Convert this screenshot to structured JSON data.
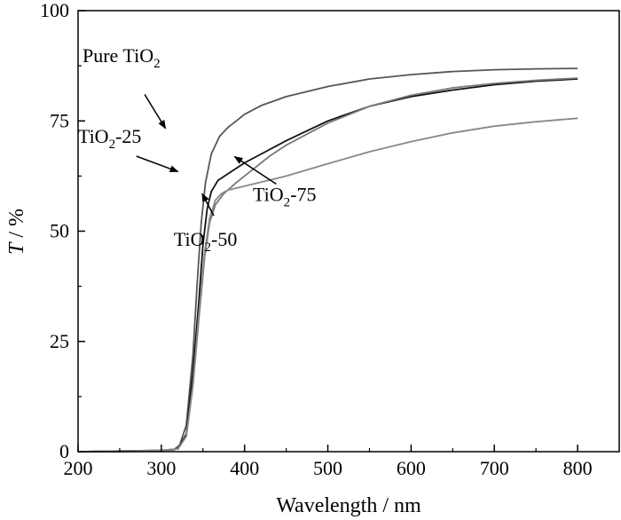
{
  "chart_data": {
    "type": "line",
    "xlabel": "Wavelength / nm",
    "ylabel_italic": "T",
    "ylabel_unit": " / %",
    "xlim": [
      200,
      850
    ],
    "ylim": [
      0,
      100
    ],
    "xticks": [
      200,
      300,
      400,
      500,
      600,
      700,
      800
    ],
    "yticks": [
      0,
      25,
      50,
      75,
      100
    ],
    "grid": false,
    "series": [
      {
        "name": "Pure TiO2",
        "color": "#555555",
        "points": [
          [
            200,
            0
          ],
          [
            250,
            0
          ],
          [
            280,
            0.1
          ],
          [
            300,
            0.3
          ],
          [
            315,
            0.4
          ],
          [
            322,
            1.5
          ],
          [
            330,
            6
          ],
          [
            338,
            22
          ],
          [
            343,
            38
          ],
          [
            348,
            52
          ],
          [
            353,
            61
          ],
          [
            360,
            67.5
          ],
          [
            370,
            71.5
          ],
          [
            380,
            73.5
          ],
          [
            390,
            75
          ],
          [
            400,
            76.5
          ],
          [
            420,
            78.5
          ],
          [
            450,
            80.5
          ],
          [
            500,
            82.8
          ],
          [
            550,
            84.5
          ],
          [
            600,
            85.5
          ],
          [
            650,
            86.2
          ],
          [
            700,
            86.6
          ],
          [
            750,
            86.8
          ],
          [
            800,
            86.9
          ]
        ]
      },
      {
        "name": "TiO2-25",
        "color": "#111111",
        "points": [
          [
            200,
            0
          ],
          [
            300,
            0.3
          ],
          [
            320,
            0.6
          ],
          [
            330,
            4
          ],
          [
            338,
            18
          ],
          [
            345,
            34
          ],
          [
            350,
            47
          ],
          [
            355,
            55
          ],
          [
            360,
            59
          ],
          [
            368,
            61.5
          ],
          [
            380,
            63
          ],
          [
            400,
            65.5
          ],
          [
            420,
            67.5
          ],
          [
            450,
            70.5
          ],
          [
            500,
            75
          ],
          [
            550,
            78.3
          ],
          [
            600,
            80.5
          ],
          [
            650,
            82
          ],
          [
            700,
            83.2
          ],
          [
            750,
            84
          ],
          [
            800,
            84.5
          ]
        ]
      },
      {
        "name": "TiO2-75",
        "color": "#777777",
        "points": [
          [
            200,
            0
          ],
          [
            300,
            0.3
          ],
          [
            320,
            0.6
          ],
          [
            330,
            3.5
          ],
          [
            338,
            15
          ],
          [
            345,
            30
          ],
          [
            352,
            44
          ],
          [
            358,
            52
          ],
          [
            365,
            56
          ],
          [
            375,
            58.5
          ],
          [
            390,
            61
          ],
          [
            410,
            64
          ],
          [
            430,
            67
          ],
          [
            450,
            69.5
          ],
          [
            500,
            74.5
          ],
          [
            550,
            78.3
          ],
          [
            600,
            80.8
          ],
          [
            650,
            82.5
          ],
          [
            700,
            83.5
          ],
          [
            750,
            84.2
          ],
          [
            800,
            84.7
          ]
        ]
      },
      {
        "name": "TiO2-50",
        "color": "#888888",
        "points": [
          [
            200,
            0
          ],
          [
            300,
            0.3
          ],
          [
            320,
            0.6
          ],
          [
            330,
            3.5
          ],
          [
            338,
            15
          ],
          [
            345,
            31
          ],
          [
            352,
            45
          ],
          [
            358,
            53
          ],
          [
            365,
            57
          ],
          [
            372,
            58.5
          ],
          [
            380,
            59.3
          ],
          [
            400,
            60.2
          ],
          [
            450,
            62.5
          ],
          [
            500,
            65.3
          ],
          [
            550,
            68
          ],
          [
            600,
            70.3
          ],
          [
            650,
            72.3
          ],
          [
            700,
            73.8
          ],
          [
            750,
            74.8
          ],
          [
            800,
            75.6
          ]
        ]
      }
    ],
    "annotations": [
      {
        "base": "Pure TiO",
        "sub": "2",
        "suffix": "",
        "text_at": [
          252,
          88.3
        ],
        "arrow_from": [
          280,
          81
        ],
        "arrow_to": [
          305,
          73.3
        ]
      },
      {
        "base": "TiO",
        "sub": "2",
        "suffix": "-25",
        "text_at": [
          238,
          70
        ],
        "arrow_from": [
          270,
          67
        ],
        "arrow_to": [
          320,
          63.5
        ]
      },
      {
        "base": "TiO",
        "sub": "2",
        "suffix": "-75",
        "text_at": [
          448,
          56.8
        ],
        "arrow_from": [
          438,
          60.7
        ],
        "arrow_to": [
          388,
          66.9
        ]
      },
      {
        "base": "TiO",
        "sub": "2",
        "suffix": "-50",
        "text_at": [
          353,
          46.7
        ],
        "arrow_from": [
          363,
          53.5
        ],
        "arrow_to": [
          349,
          58.5
        ]
      }
    ]
  }
}
